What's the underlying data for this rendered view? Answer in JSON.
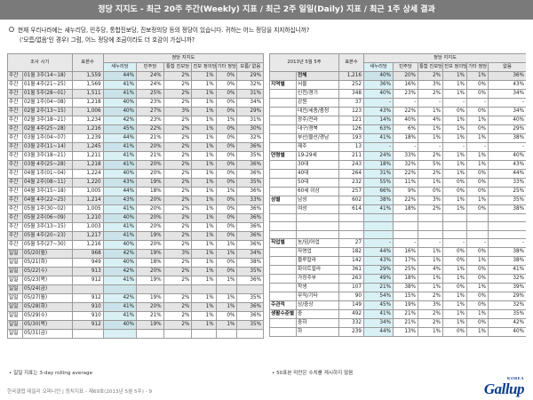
{
  "banner": "정당 지지도 - 최근 20주 주간(Weekly) 지표 / 최근 2주 일일(Daily) 지표 / 최근 1주 상세 결과",
  "question": {
    "line1": "현재 우리나라에는 새누리당, 민주당, 통합진보당, 진보정의당 등의 정당이 있습니다. 귀하는 어느 정당을 지지하십니까?",
    "line2": "('모름/없음'인 경우) 그럼, 어느 정당에 조금이라도 더 호감이 가십니까?"
  },
  "left": {
    "h_period": "조사 시기",
    "h_sample": "표본수",
    "h_group": "정당 지지도",
    "h_cols": [
      "새누리당",
      "민주당",
      "통합 진보당",
      "진보 정의당",
      "기타 정당",
      "모름/ 없음"
    ],
    "weekly": [
      {
        "type": "주간",
        "date": "01월 3주(14~18)",
        "n": "1,559",
        "v": [
          "44%",
          "24%",
          "2%",
          "1%",
          "0%",
          "29%"
        ]
      },
      {
        "type": "주간",
        "date": "01월 4주(21~25)",
        "n": "1,569",
        "v": [
          "41%",
          "24%",
          "2%",
          "1%",
          "0%",
          "32%"
        ]
      },
      {
        "type": "주간",
        "date": "01월 5주(28~01)",
        "n": "1,511",
        "v": [
          "41%",
          "25%",
          "2%",
          "1%",
          "0%",
          "31%"
        ]
      },
      {
        "type": "주간",
        "date": "02월 1주(04~08)",
        "n": "1,218",
        "v": [
          "40%",
          "23%",
          "2%",
          "1%",
          "0%",
          "34%"
        ]
      },
      {
        "type": "주간",
        "date": "02월 2주(13~15)",
        "n": "1,006",
        "v": [
          "40%",
          "27%",
          "3%",
          "1%",
          "0%",
          "29%"
        ]
      },
      {
        "type": "주간",
        "date": "02월 3주(18~21)",
        "n": "1,234",
        "v": [
          "42%",
          "23%",
          "2%",
          "1%",
          "1%",
          "31%"
        ]
      },
      {
        "type": "주간",
        "date": "02월 4주(25~28)",
        "n": "1,216",
        "v": [
          "45%",
          "22%",
          "2%",
          "1%",
          "0%",
          "30%"
        ]
      },
      {
        "type": "주간",
        "date": "03월 1주(04~07)",
        "n": "1,239",
        "v": [
          "44%",
          "21%",
          "2%",
          "1%",
          "0%",
          "32%"
        ]
      },
      {
        "type": "주간",
        "date": "03월 2주(11~14)",
        "n": "1,245",
        "v": [
          "41%",
          "20%",
          "2%",
          "1%",
          "0%",
          "36%"
        ]
      },
      {
        "type": "주간",
        "date": "03월 3주(18~21)",
        "n": "1,211",
        "v": [
          "41%",
          "21%",
          "2%",
          "1%",
          "0%",
          "35%"
        ]
      },
      {
        "type": "주간",
        "date": "03월 4주(25~28)",
        "n": "1,218",
        "v": [
          "41%",
          "20%",
          "2%",
          "1%",
          "0%",
          "36%"
        ]
      },
      {
        "type": "주간",
        "date": "04월 1주(01~04)",
        "n": "1,224",
        "v": [
          "40%",
          "20%",
          "2%",
          "1%",
          "0%",
          "36%"
        ]
      },
      {
        "type": "주간",
        "date": "04월 2주(08~11)",
        "n": "1,220",
        "v": [
          "43%",
          "19%",
          "2%",
          "1%",
          "0%",
          "35%"
        ]
      },
      {
        "type": "주간",
        "date": "04월 3주(15~18)",
        "n": "1,005",
        "v": [
          "44%",
          "18%",
          "2%",
          "1%",
          "1%",
          "36%"
        ]
      },
      {
        "type": "주간",
        "date": "04월 4주(22~25)",
        "n": "1,214",
        "v": [
          "43%",
          "20%",
          "2%",
          "1%",
          "0%",
          "33%"
        ]
      },
      {
        "type": "주간",
        "date": "05월 1주(30~02)",
        "n": "1,005",
        "v": [
          "41%",
          "20%",
          "2%",
          "1%",
          "0%",
          "36%"
        ]
      },
      {
        "type": "주간",
        "date": "05월 2주(06~09)",
        "n": "1,210",
        "v": [
          "40%",
          "20%",
          "2%",
          "1%",
          "0%",
          "36%"
        ]
      },
      {
        "type": "주간",
        "date": "05월 3주(13~15)",
        "n": "1,003",
        "v": [
          "41%",
          "20%",
          "2%",
          "1%",
          "0%",
          "36%"
        ]
      },
      {
        "type": "주간",
        "date": "05월 4주(20~23)",
        "n": "1,217",
        "v": [
          "41%",
          "19%",
          "2%",
          "1%",
          "0%",
          "36%"
        ]
      },
      {
        "type": "주간",
        "date": "05월 5주(27~30)",
        "n": "1,216",
        "v": [
          "40%",
          "20%",
          "2%",
          "1%",
          "1%",
          "36%"
        ]
      }
    ],
    "daily": [
      {
        "type": "일일",
        "date": "05/20(월)",
        "n": "968",
        "v": [
          "42%",
          "19%",
          "3%",
          "1%",
          "1%",
          "34%"
        ]
      },
      {
        "type": "일일",
        "date": "05/21(화)",
        "n": "949",
        "v": [
          "40%",
          "18%",
          "2%",
          "1%",
          "0%",
          "38%"
        ]
      },
      {
        "type": "일일",
        "date": "05/22(수)",
        "n": "913",
        "v": [
          "42%",
          "20%",
          "2%",
          "1%",
          "0%",
          "35%"
        ]
      },
      {
        "type": "일일",
        "date": "05/23(목)",
        "n": "912",
        "v": [
          "41%",
          "19%",
          "2%",
          "1%",
          "1%",
          "36%"
        ]
      },
      {
        "type": "일일",
        "date": "05/24(금)",
        "n": "",
        "v": [
          "",
          "",
          "",
          "",
          "",
          ""
        ]
      },
      {
        "type": "일일",
        "date": "05/27(월)",
        "n": "912",
        "v": [
          "42%",
          "19%",
          "2%",
          "1%",
          "1%",
          "35%"
        ]
      },
      {
        "type": "일일",
        "date": "05/28(화)",
        "n": "910",
        "v": [
          "41%",
          "20%",
          "2%",
          "1%",
          "1%",
          "36%"
        ]
      },
      {
        "type": "일일",
        "date": "05/29(수)",
        "n": "910",
        "v": [
          "41%",
          "21%",
          "2%",
          "1%",
          "0%",
          "36%"
        ]
      },
      {
        "type": "일일",
        "date": "05/30(목)",
        "n": "912",
        "v": [
          "40%",
          "19%",
          "2%",
          "1%",
          "1%",
          "35%"
        ]
      },
      {
        "type": "일일",
        "date": "05/31(금)",
        "n": "",
        "v": [
          "",
          "",
          "",
          "",
          "",
          ""
        ]
      }
    ],
    "footnote": "• 일일 지표는 3-day rolling average"
  },
  "right": {
    "h_title": "2013년 5월 5주",
    "h_sample": "표본수",
    "h_group": "정당 지지도",
    "h_cols": [
      "새누리당",
      "민주당",
      "통합 진보당",
      "진보 정의당",
      "기타 정당",
      "없음"
    ],
    "rows": [
      {
        "g": "",
        "s": "전체",
        "n": "1,216",
        "v": [
          "40%",
          "20%",
          "2%",
          "1%",
          "1%",
          "36%"
        ],
        "total": true
      },
      {
        "g": "지역별",
        "s": "서울",
        "n": "252",
        "v": [
          "36%",
          "16%",
          "3%",
          "1%",
          "0%",
          "43%"
        ]
      },
      {
        "g": "",
        "s": "인천/경기",
        "n": "348",
        "v": [
          "40%",
          "23%",
          "2%",
          "1%",
          "0%",
          "34%"
        ]
      },
      {
        "g": "",
        "s": "강원",
        "n": "37",
        "v": [
          "-",
          "-",
          "-",
          "-",
          "-",
          "-"
        ]
      },
      {
        "g": "",
        "s": "대전/세종/충청",
        "n": "123",
        "v": [
          "43%",
          "22%",
          "1%",
          "0%",
          "0%",
          "34%"
        ]
      },
      {
        "g": "",
        "s": "광주/전라",
        "n": "121",
        "v": [
          "14%",
          "40%",
          "4%",
          "1%",
          "1%",
          "40%"
        ]
      },
      {
        "g": "",
        "s": "대구/경북",
        "n": "126",
        "v": [
          "63%",
          "6%",
          "1%",
          "1%",
          "0%",
          "29%"
        ]
      },
      {
        "g": "",
        "s": "부산/울산/경남",
        "n": "193",
        "v": [
          "41%",
          "18%",
          "1%",
          "1%",
          "1%",
          "38%"
        ]
      },
      {
        "g": "",
        "s": "제주",
        "n": "13",
        "v": [
          "-",
          "-",
          "-",
          "-",
          "-",
          "-"
        ]
      },
      {
        "g": "연령별",
        "s": "19-29세",
        "n": "211",
        "v": [
          "24%",
          "33%",
          "2%",
          "1%",
          "1%",
          "40%"
        ]
      },
      {
        "g": "",
        "s": "30대",
        "n": "243",
        "v": [
          "18%",
          "32%",
          "5%",
          "1%",
          "1%",
          "43%"
        ]
      },
      {
        "g": "",
        "s": "40대",
        "n": "264",
        "v": [
          "31%",
          "22%",
          "2%",
          "1%",
          "0%",
          "44%"
        ]
      },
      {
        "g": "",
        "s": "50대",
        "n": "232",
        "v": [
          "55%",
          "11%",
          "1%",
          "0%",
          "0%",
          "33%"
        ]
      },
      {
        "g": "",
        "s": "60세 이상",
        "n": "257",
        "v": [
          "66%",
          "9%",
          "0%",
          "0%",
          "0%",
          "25%"
        ]
      },
      {
        "g": "성별",
        "s": "남성",
        "n": "602",
        "v": [
          "38%",
          "22%",
          "3%",
          "1%",
          "1%",
          "35%"
        ]
      },
      {
        "g": "",
        "s": "여성",
        "n": "614",
        "v": [
          "41%",
          "18%",
          "2%",
          "1%",
          "0%",
          "38%"
        ]
      },
      {
        "g": "",
        "s": "",
        "n": "",
        "v": [
          "",
          "",
          "",
          "",
          "",
          ""
        ],
        "spacer": true
      },
      {
        "g": "",
        "s": "",
        "n": "",
        "v": [
          "",
          "",
          "",
          "",
          "",
          ""
        ],
        "spacer": true
      },
      {
        "g": "",
        "s": "",
        "n": "",
        "v": [
          "",
          "",
          "",
          "",
          "",
          ""
        ],
        "spacer": true
      },
      {
        "g": "직업별",
        "s": "농/임/어업",
        "n": "27",
        "v": [
          "-",
          "-",
          "-",
          "-",
          "-",
          "-"
        ]
      },
      {
        "g": "",
        "s": "자영업",
        "n": "182",
        "v": [
          "44%",
          "16%",
          "1%",
          "0%",
          "0%",
          "38%"
        ]
      },
      {
        "g": "",
        "s": "블루칼라",
        "n": "142",
        "v": [
          "43%",
          "17%",
          "1%",
          "0%",
          "1%",
          "38%"
        ]
      },
      {
        "g": "",
        "s": "화이트칼라",
        "n": "361",
        "v": [
          "29%",
          "25%",
          "4%",
          "1%",
          "0%",
          "41%"
        ]
      },
      {
        "g": "",
        "s": "가정주부",
        "n": "263",
        "v": [
          "49%",
          "18%",
          "1%",
          "1%",
          "0%",
          "32%"
        ]
      },
      {
        "g": "",
        "s": "학생",
        "n": "107",
        "v": [
          "21%",
          "38%",
          "1%",
          "0%",
          "1%",
          "39%"
        ]
      },
      {
        "g": "",
        "s": "무직/기타",
        "n": "90",
        "v": [
          "54%",
          "15%",
          "2%",
          "1%",
          "0%",
          "29%"
        ]
      },
      {
        "g": "주관적",
        "s": "상/중상",
        "n": "149",
        "v": [
          "45%",
          "19%",
          "3%",
          "1%",
          "0%",
          "32%"
        ]
      },
      {
        "g": "생활수준별",
        "s": "중",
        "n": "492",
        "v": [
          "41%",
          "21%",
          "2%",
          "1%",
          "1%",
          "35%"
        ]
      },
      {
        "g": "",
        "s": "중하",
        "n": "332",
        "v": [
          "34%",
          "21%",
          "2%",
          "1%",
          "0%",
          "42%"
        ]
      },
      {
        "g": "",
        "s": "하",
        "n": "239",
        "v": [
          "44%",
          "13%",
          "1%",
          "0%",
          "1%",
          "40%"
        ]
      }
    ],
    "footnote": "• 50표본 미만은 수치를 게시하지 않음"
  },
  "footer": {
    "source": "한국갤럽 데일리 오피니언 | 정치지표 - 제69호(2013년 5월 5주) - 9",
    "logo": "Gallup",
    "logo_sub": "KOREA"
  }
}
